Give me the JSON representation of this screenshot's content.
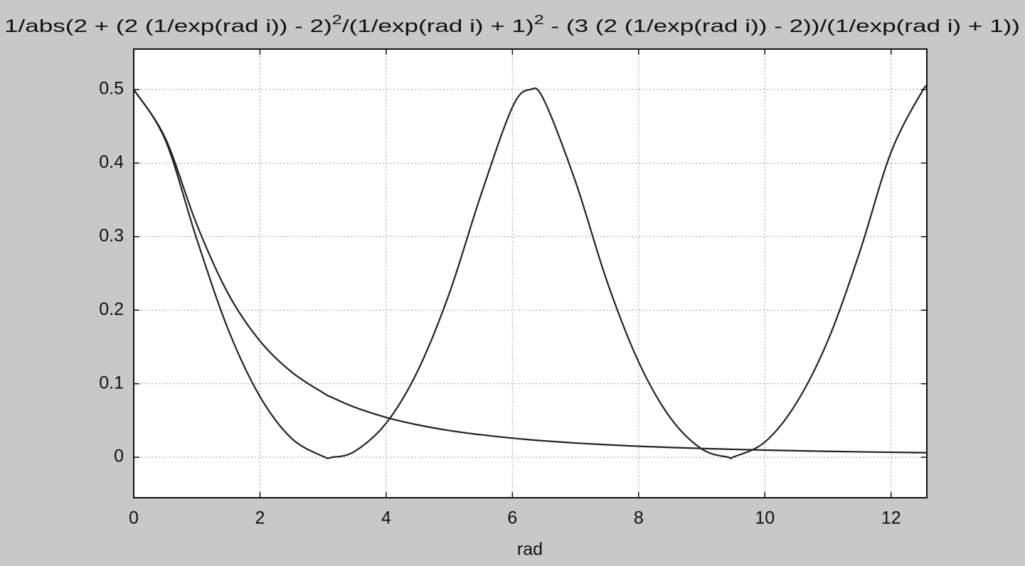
{
  "chart_data": {
    "type": "line",
    "title_parts": [
      "1/abs(2 + (2 (1/exp(rad i)) - 2)",
      "2",
      "/(1/exp(rad i) + 1)",
      "2",
      " - (3 (2 (1/exp(rad i)) - 2))/(1/exp(rad i) + 1))"
    ],
    "x_label": "rad",
    "x": [
      0,
      0.5,
      1,
      1.5,
      2,
      2.5,
      3,
      3.1416,
      3.5,
      4,
      4.5,
      5,
      5.5,
      6,
      6.2832,
      6.5,
      7,
      7.5,
      8,
      8.5,
      9,
      9.4248,
      9.5,
      10,
      10.5,
      11,
      11.5,
      12,
      12.5,
      12.5664
    ],
    "series": [
      {
        "color": "#222222",
        "values": [
          0.5,
          0.4314,
          0.2963,
          0.173,
          0.0826,
          0.0258,
          0.00125,
          0,
          0.008,
          0.0464,
          0.1176,
          0.2228,
          0.3564,
          0.476,
          0.5,
          0.4857,
          0.3747,
          0.2389,
          0.1296,
          0.054,
          0.0113,
          0,
          0.00035,
          0.0207,
          0.0739,
          0.159,
          0.2783,
          0.4149,
          0.4986,
          0.5
        ]
      },
      {
        "color": "#222222",
        "values": [
          0.5,
          0.4339,
          0.3162,
          0.2219,
          0.1581,
          0.116,
          0.0877,
          0.0814,
          0.0681,
          0.0542,
          0.0441,
          0.0364,
          0.0306,
          0.026,
          0.0238,
          0.0224,
          0.0194,
          0.017,
          0.015,
          0.0134,
          0.012,
          0.011,
          0.0108,
          0.0098,
          0.0089,
          0.0081,
          0.0074,
          0.0068,
          0.0063,
          0.0062
        ]
      }
    ],
    "xlim": [
      0,
      12.5664
    ],
    "xticks": [
      0,
      2,
      4,
      6,
      8,
      10,
      12
    ],
    "ylim": [
      -0.055,
      0.555
    ],
    "yticks": [
      0,
      0.1,
      0.2,
      0.3,
      0.4,
      0.5
    ],
    "grid": true
  }
}
